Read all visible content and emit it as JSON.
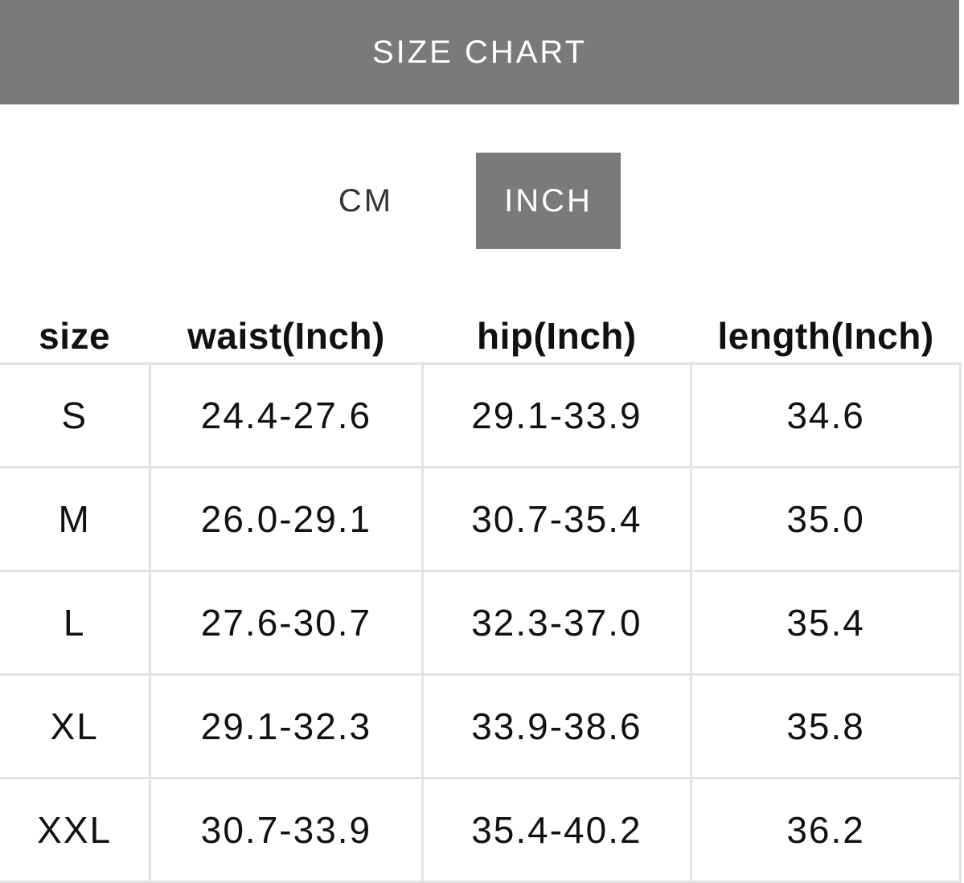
{
  "header": {
    "title": "SIZE CHART"
  },
  "units": {
    "cm": "CM",
    "inch": "INCH",
    "selected": "INCH",
    "selected_color": "#7b7a78"
  },
  "table": {
    "columns": [
      "size",
      "waist(Inch)",
      "hip(Inch)",
      "length(Inch)"
    ],
    "rows": [
      [
        "S",
        "24.4-27.6",
        "29.1-33.9",
        "34.6"
      ],
      [
        "M",
        "26.0-29.1",
        "30.7-35.4",
        "35.0"
      ],
      [
        "L",
        "27.6-30.7",
        "32.3-37.0",
        "35.4"
      ],
      [
        "XL",
        "29.1-32.3",
        "33.9-38.6",
        "35.8"
      ],
      [
        "XXL",
        "30.7-33.9",
        "35.4-40.2",
        "36.2"
      ]
    ]
  }
}
